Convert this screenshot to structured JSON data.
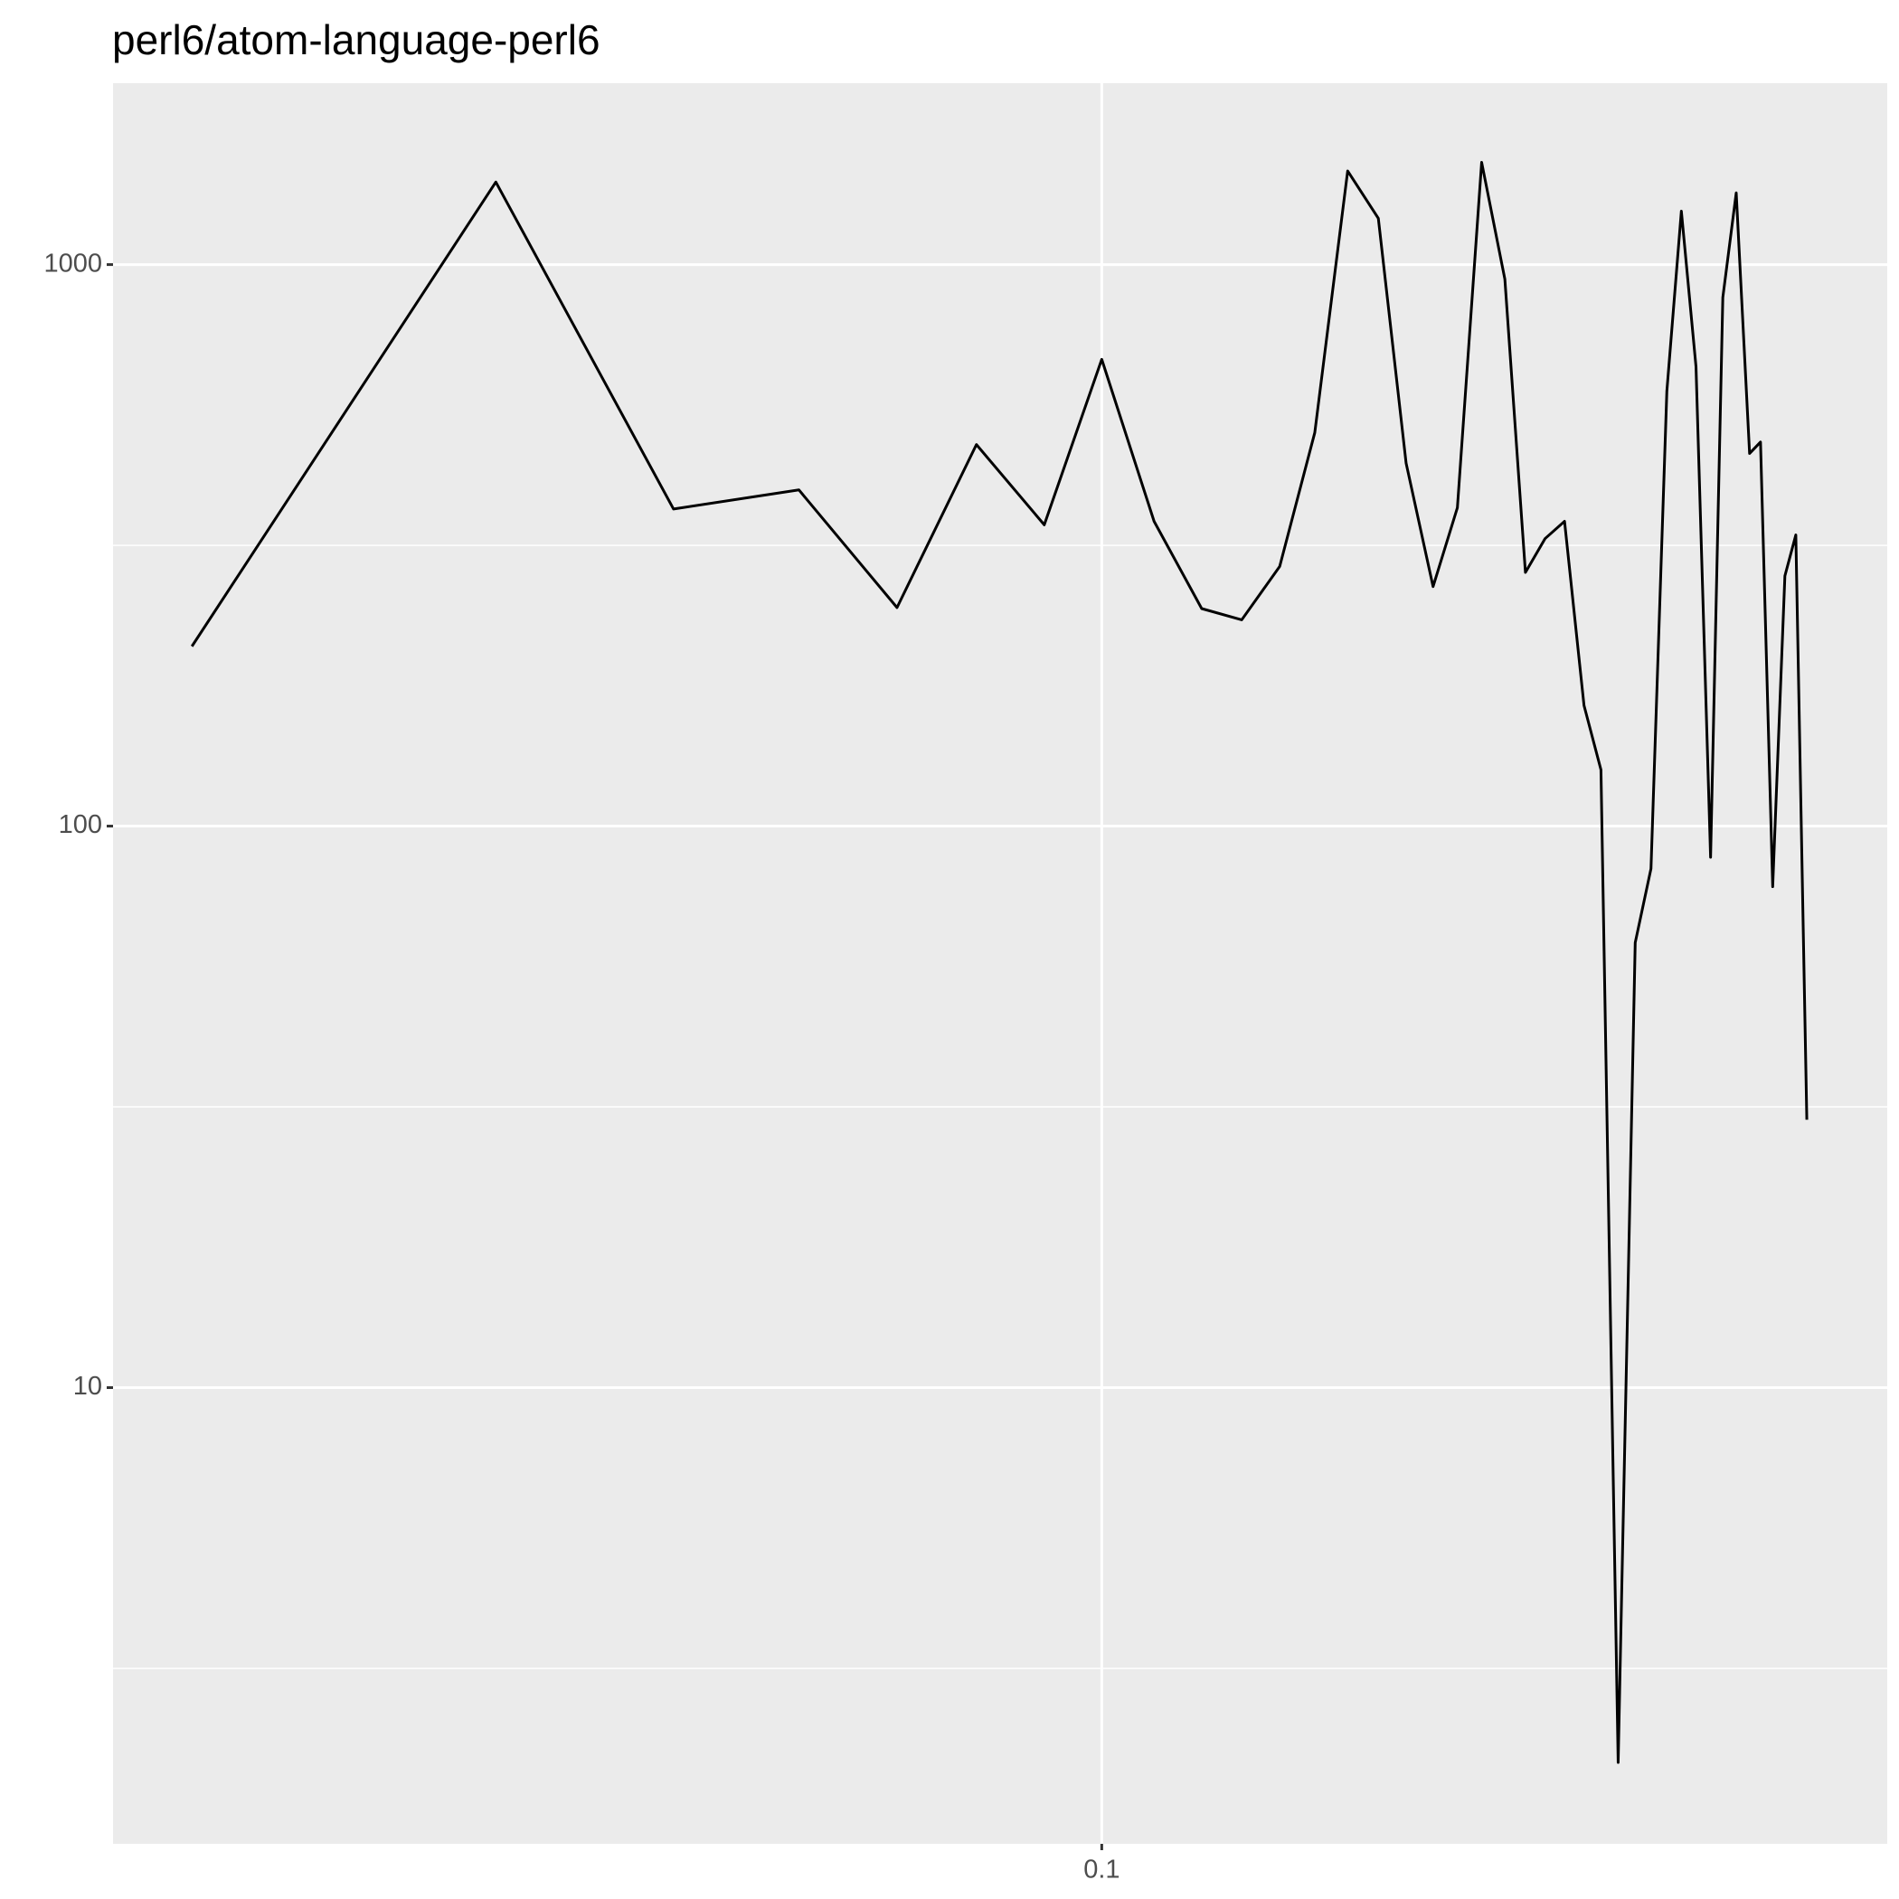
{
  "chart_data": {
    "type": "line",
    "title": "perl6/atom-language-perl6",
    "x": [
      0.0179,
      0.0318,
      0.0445,
      0.0564,
      0.0679,
      0.0789,
      0.0897,
      0.1,
      0.1104,
      0.1208,
      0.1303,
      0.14,
      0.1496,
      0.1592,
      0.1687,
      0.1778,
      0.1871,
      0.1959,
      0.2051,
      0.2143,
      0.2228,
      0.2312,
      0.2399,
      0.2489,
      0.257,
      0.2655,
      0.2742,
      0.2825,
      0.2911,
      0.2992,
      0.3076,
      0.3162,
      0.3236,
      0.3319,
      0.3404,
      0.3475,
      0.3556,
      0.3639,
      0.3715,
      0.3793
    ],
    "series": [
      {
        "color": "#000000",
        "values": [
          209,
          1403,
          367,
          397,
          245,
          478,
          344,
          678,
          349,
          244,
          233,
          290,
          502,
          1468,
          1209,
          443,
          267,
          369,
          1521,
          942,
          283,
          325,
          349,
          164,
          126,
          2.15,
          62,
          84,
          595,
          1245,
          658,
          88,
          874,
          1342,
          461,
          483,
          78,
          279,
          330,
          30
        ]
      }
    ],
    "xlim": [
      0.01542,
      0.4416
    ],
    "xticks": [
      0.1
    ],
    "xlog": true,
    "ylim": [
      1.54,
      2104
    ],
    "yticks": [
      10,
      100,
      1000
    ],
    "yminor_ticks": [
      3.162,
      31.62,
      316.2
    ],
    "ylog": true,
    "grid": true,
    "panel_color": "#EBEBEB"
  }
}
